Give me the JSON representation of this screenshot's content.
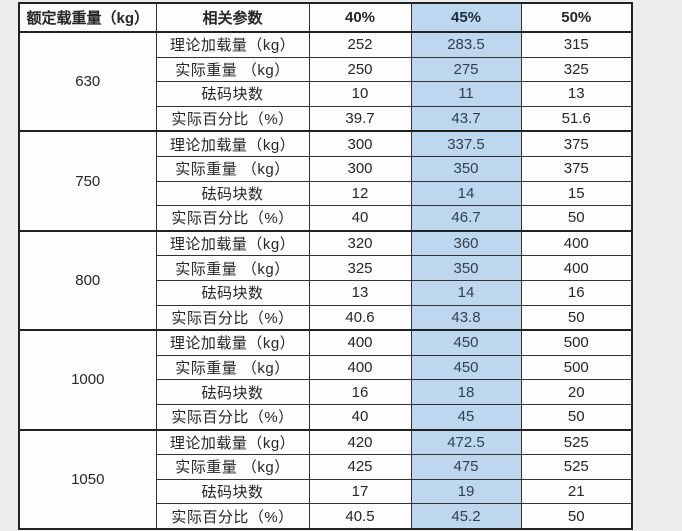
{
  "header": {
    "col_rated_load": "额定载重量（kg）",
    "col_params": "相关参数",
    "pcts": [
      "40%",
      "45%",
      "50%"
    ]
  },
  "row_labels": [
    "理论加载量（kg）",
    "实际重量 （kg）",
    "砝码块数",
    "实际百分比（%）"
  ],
  "groups": [
    {
      "load": "630",
      "rows": [
        [
          "252",
          "283.5",
          "315"
        ],
        [
          "250",
          "275",
          "325"
        ],
        [
          "10",
          "11",
          "13"
        ],
        [
          "39.7",
          "43.7",
          "51.6"
        ]
      ]
    },
    {
      "load": "750",
      "rows": [
        [
          "300",
          "337.5",
          "375"
        ],
        [
          "300",
          "350",
          "375"
        ],
        [
          "12",
          "14",
          "15"
        ],
        [
          "40",
          "46.7",
          "50"
        ]
      ]
    },
    {
      "load": "800",
      "rows": [
        [
          "320",
          "360",
          "400"
        ],
        [
          "325",
          "350",
          "400"
        ],
        [
          "13",
          "14",
          "16"
        ],
        [
          "40.6",
          "43.8",
          "50"
        ]
      ]
    },
    {
      "load": "1000",
      "rows": [
        [
          "400",
          "450",
          "500"
        ],
        [
          "400",
          "450",
          "500"
        ],
        [
          "16",
          "18",
          "20"
        ],
        [
          "40",
          "45",
          "50"
        ]
      ]
    },
    {
      "load": "1050",
      "rows": [
        [
          "420",
          "472.5",
          "525"
        ],
        [
          "425",
          "475",
          "525"
        ],
        [
          "17",
          "19",
          "21"
        ],
        [
          "40.5",
          "45.2",
          "50"
        ]
      ]
    }
  ],
  "colors": {
    "highlight_column": "#bdd7ee",
    "table_border": "#222222",
    "page_background": "#ededed"
  }
}
